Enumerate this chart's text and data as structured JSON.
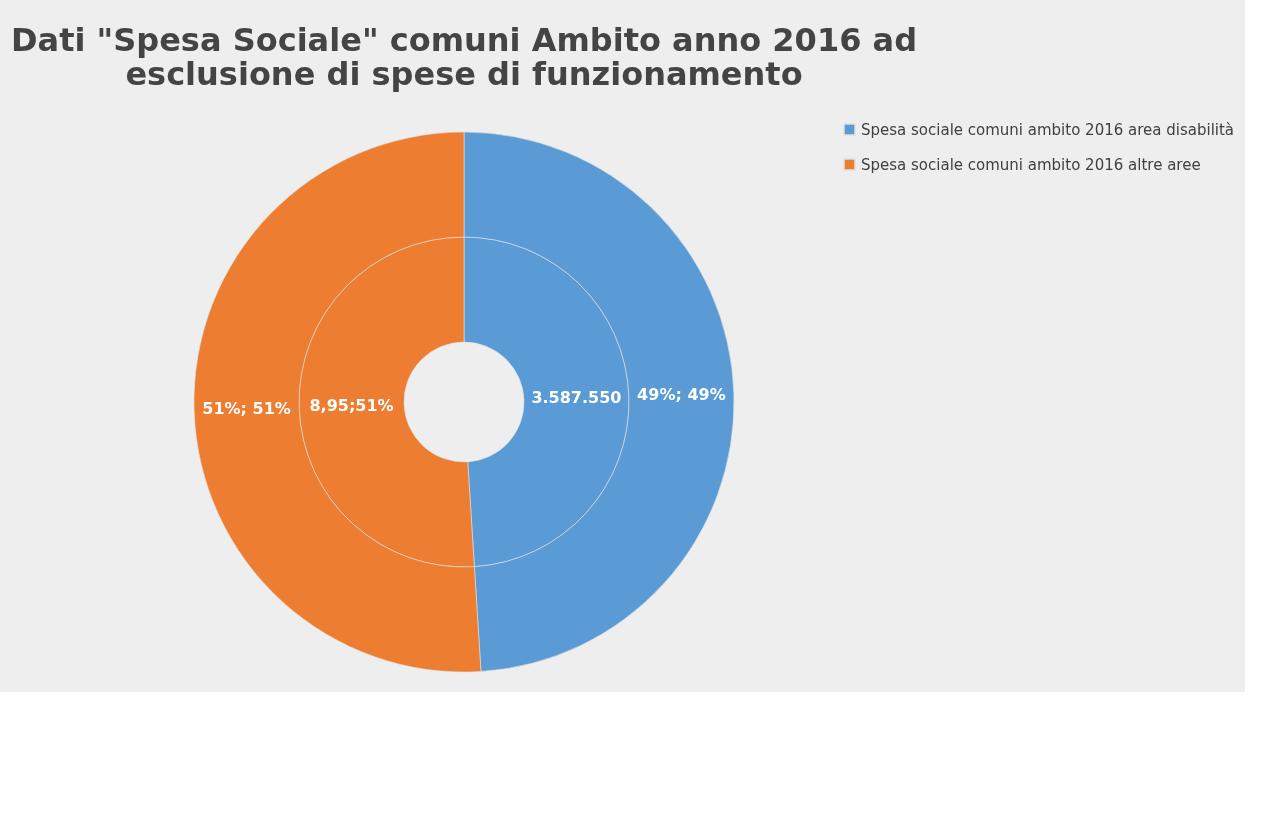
{
  "chart_data": {
    "type": "donut",
    "title": [
      "Dati \"Spesa Sociale\" comuni Ambito anno 2016 ad",
      "esclusione di spese di funzionamento"
    ],
    "categories": [
      "Spesa sociale comuni ambito 2016 area disabilità",
      "Spesa sociale comuni ambito 2016 altre aree"
    ],
    "colors": [
      "#5b9bd5",
      "#ed7d31"
    ],
    "series": [
      {
        "values": [
          49,
          51
        ]
      },
      {
        "values": [
          49,
          51
        ],
        "value_labels": [
          "49%; 49%",
          "51%; 51%"
        ]
      }
    ],
    "annotations": [
      "3.587.550",
      "8,95;51%"
    ],
    "legend": "right"
  }
}
